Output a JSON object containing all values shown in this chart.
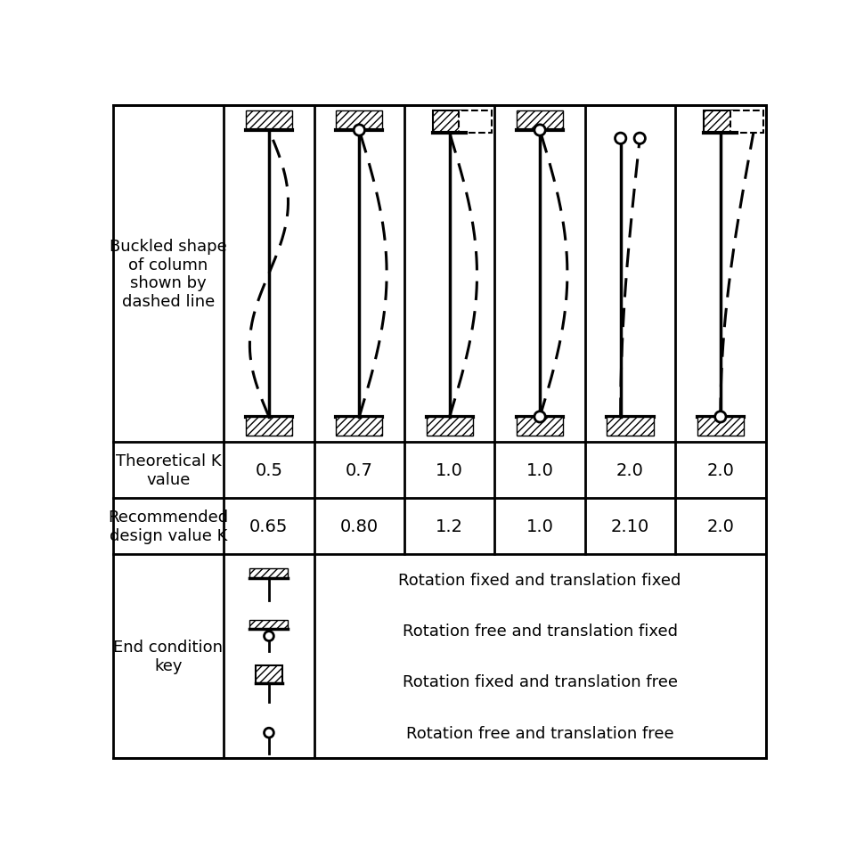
{
  "theoretical_k": [
    "0.5",
    "0.7",
    "1.0",
    "1.0",
    "2.0",
    "2.0"
  ],
  "recommended_k": [
    "0.65",
    "0.80",
    "1.2",
    "1.0",
    "2.10",
    "2.0"
  ],
  "buckled_label": "Buckled shape\nof column\nshown by\ndashed line",
  "theoretical_label": "Theoretical K\nvalue",
  "recommended_label": "Recommended\ndesign value K",
  "end_condition_label": "End condition\nkey",
  "legend_items": [
    "Rotation fixed and translation fixed",
    "Rotation free and translation fixed",
    "Rotation fixed and translation free",
    "Rotation free and translation free"
  ],
  "bg_color": "#ffffff"
}
